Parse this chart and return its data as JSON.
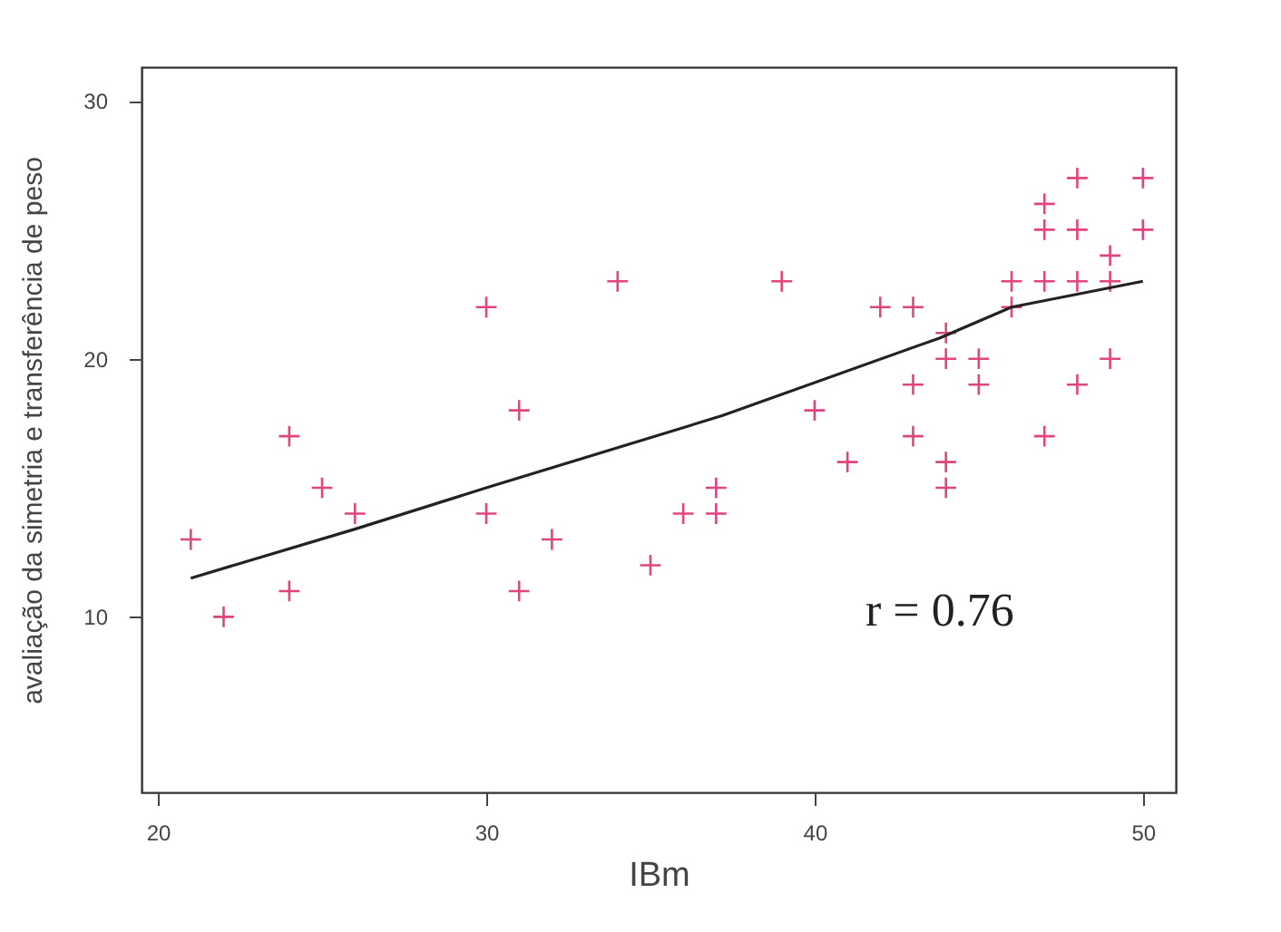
{
  "chart_data": {
    "type": "scatter",
    "xlabel": "IBm",
    "ylabel": "avaliação da simetria e transferência de peso",
    "annotations": [
      "r = 0.76"
    ],
    "xlim": [
      19.5,
      51
    ],
    "ylim": [
      3.2,
      31.3
    ],
    "xticks": [
      20,
      30,
      40,
      50
    ],
    "yticks": [
      10,
      20,
      30
    ],
    "grid": false,
    "series": [
      {
        "marker": "cross",
        "color": "#e0457e",
        "x": [
          21,
          22,
          24,
          24,
          25,
          26,
          30,
          30,
          31,
          31,
          32,
          34,
          35,
          36,
          37,
          37,
          39,
          40,
          41,
          42,
          43,
          43,
          43,
          44,
          44,
          44,
          44,
          45,
          45,
          46,
          46,
          47,
          47,
          47,
          47,
          48,
          48,
          48,
          48,
          49,
          49,
          49,
          50,
          50
        ],
        "values": [
          13,
          10,
          17,
          11,
          15,
          14,
          22,
          14,
          18,
          11,
          13,
          23,
          12,
          14,
          15,
          14,
          23,
          18,
          16,
          22,
          22,
          19,
          17,
          21,
          20,
          16,
          15,
          20,
          19,
          23,
          22,
          26,
          25,
          23,
          17,
          27,
          25,
          23,
          19,
          24,
          23,
          20,
          27,
          25
        ]
      },
      {
        "type": "line",
        "marker": "none",
        "line_style": "solid",
        "color": "#222222",
        "x": [
          21,
          26,
          30,
          37.2,
          43.8,
          46,
          50
        ],
        "values": [
          11.5,
          13.4,
          15.0,
          17.8,
          20.8,
          22.0,
          23.0
        ]
      }
    ]
  }
}
